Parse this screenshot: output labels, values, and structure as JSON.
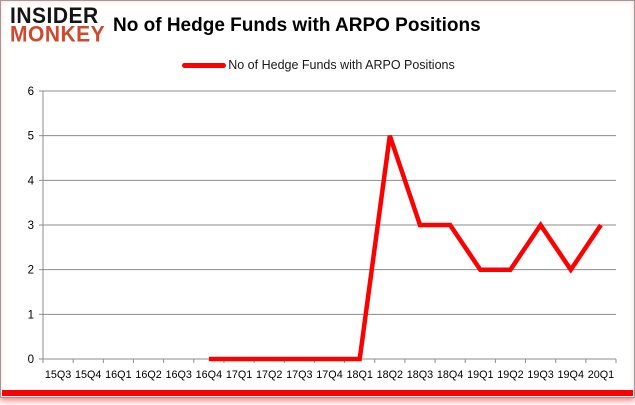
{
  "brand": {
    "line1": "INSIDER",
    "line2": "MONKEY"
  },
  "header": {
    "title": "No of Hedge Funds with ARPO Positions"
  },
  "legend": {
    "label": "No of Hedge Funds with ARPO Positions"
  },
  "colors": {
    "series": "#ff0000",
    "grid": "#8c8c8c",
    "axis": "#8c8c8c",
    "axis_text": "#000000",
    "brand_black": "#141414",
    "brand_red": "#cd4a2f",
    "card_border": "#9b9b9b",
    "bottom_accent": "#ff0000"
  },
  "chart_data": {
    "type": "line",
    "title": "No of Hedge Funds with ARPO Positions",
    "categories": [
      "15Q3",
      "15Q4",
      "16Q1",
      "16Q2",
      "16Q3",
      "16Q4",
      "17Q1",
      "17Q2",
      "17Q3",
      "17Q4",
      "18Q1",
      "18Q2",
      "18Q3",
      "18Q4",
      "19Q1",
      "19Q2",
      "19Q3",
      "19Q4",
      "20Q1"
    ],
    "series": [
      {
        "name": "No of Hedge Funds with ARPO Positions",
        "values": [
          null,
          null,
          null,
          null,
          null,
          0,
          0,
          0,
          0,
          0,
          0,
          5,
          3,
          3,
          2,
          2,
          3,
          2,
          3
        ]
      }
    ],
    "xlabel": "",
    "ylabel": "",
    "ylim": [
      0,
      6
    ],
    "ytick_step": 1,
    "grid": "horizontal",
    "legend_position": "top-center"
  }
}
